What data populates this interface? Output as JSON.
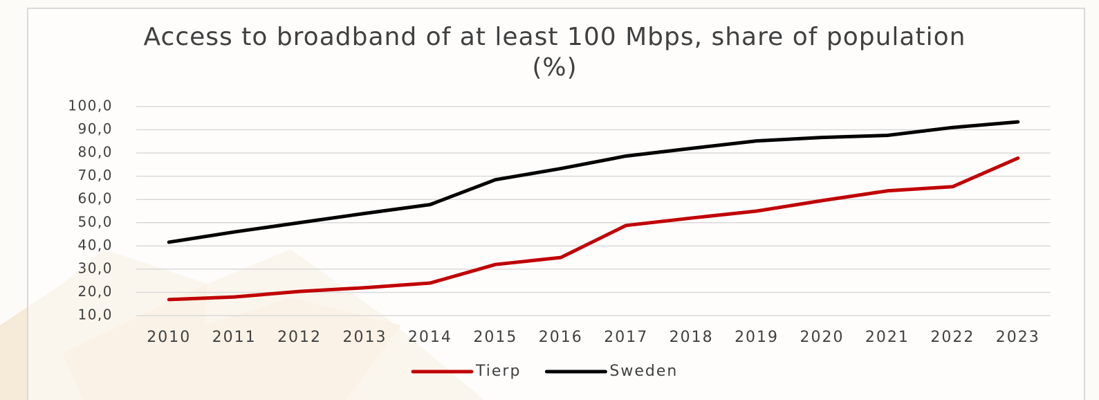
{
  "chart_data": {
    "type": "line",
    "title": "Access to broadband of at least 100 Mbps, share of population (%)",
    "categories": [
      "2010",
      "2011",
      "2012",
      "2013",
      "2014",
      "2015",
      "2016",
      "2017",
      "2018",
      "2019",
      "2020",
      "2021",
      "2022",
      "2023"
    ],
    "series": [
      {
        "name": "Tierp",
        "color": "#c00000",
        "values": [
          16.9,
          18,
          20.4,
          22,
          24,
          32,
          35,
          48.8,
          52,
          55,
          59.5,
          63.7,
          65.5,
          77.8
        ]
      },
      {
        "name": "Sweden",
        "color": "#000000",
        "values": [
          41.6,
          46,
          50,
          54,
          57.8,
          68.5,
          73.3,
          78.7,
          82,
          85.2,
          86.7,
          87.6,
          91,
          93.4
        ]
      }
    ],
    "ylim": [
      10,
      100
    ],
    "yticks": [
      {
        "value": 10,
        "label": "10,0"
      },
      {
        "value": 20,
        "label": "20,0"
      },
      {
        "value": 30,
        "label": "30,0"
      },
      {
        "value": 40,
        "label": "40,0"
      },
      {
        "value": 50,
        "label": "50,0"
      },
      {
        "value": 60,
        "label": "60,0"
      },
      {
        "value": 70,
        "label": "70,0"
      },
      {
        "value": 80,
        "label": "80,0"
      },
      {
        "value": 90,
        "label": "90,0"
      },
      {
        "value": 100,
        "label": "100,0"
      }
    ],
    "grid": true,
    "legend": "bottom"
  }
}
